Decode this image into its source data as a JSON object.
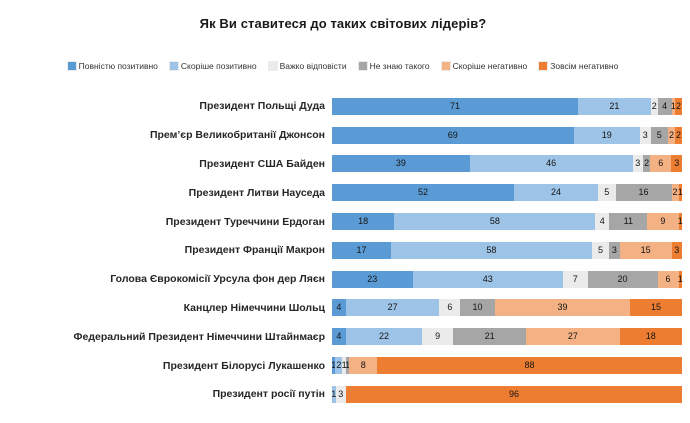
{
  "chart_data": {
    "type": "bar",
    "orientation": "horizontal",
    "stacked": true,
    "title": "Як Ви ставитеся до таких світових лідерів?",
    "xlim": [
      0,
      100
    ],
    "grid": false,
    "legend_position": "top",
    "value_labels": "inside-center",
    "categories": [
      "Президент Польщі Дуда",
      "Прем’єр Великобританії Джонсон",
      "Президент США Байден",
      "Президент Литви Науседа",
      "Президент Туреччини Ердоган",
      "Президент Франції Макрон",
      "Голова Єврокомісії Урсула фон дер Ляєн",
      "Канцлер Німеччини Шольц",
      "Федеральний Президент Німеччини Штайнмаєр",
      "Президент Білорусі Лукашенко",
      "Президент росії путін"
    ],
    "series": [
      {
        "name": "Повністю позитивно",
        "color": "#5b9bd5",
        "values": [
          71,
          69,
          39,
          52,
          18,
          17,
          23,
          4,
          4,
          1,
          0
        ]
      },
      {
        "name": "Скоріше позитивно",
        "color": "#9dc3e6",
        "values": [
          21,
          19,
          46,
          24,
          58,
          58,
          43,
          27,
          22,
          2,
          1
        ]
      },
      {
        "name": "Важко відповісти",
        "color": "#ebebeb",
        "values": [
          2,
          3,
          3,
          5,
          4,
          5,
          7,
          6,
          9,
          1,
          3
        ]
      },
      {
        "name": "Не знаю такого",
        "color": "#a6a6a6",
        "values": [
          4,
          5,
          2,
          16,
          11,
          3,
          20,
          10,
          21,
          1,
          0
        ]
      },
      {
        "name": "Скоріше негативно",
        "color": "#f4b183",
        "values": [
          1,
          2,
          6,
          2,
          9,
          15,
          6,
          39,
          27,
          8,
          0
        ]
      },
      {
        "name": "Зовсім негативно",
        "color": "#ed7d31",
        "values": [
          2,
          2,
          3,
          1,
          1,
          3,
          1,
          15,
          18,
          88,
          96
        ]
      }
    ]
  }
}
